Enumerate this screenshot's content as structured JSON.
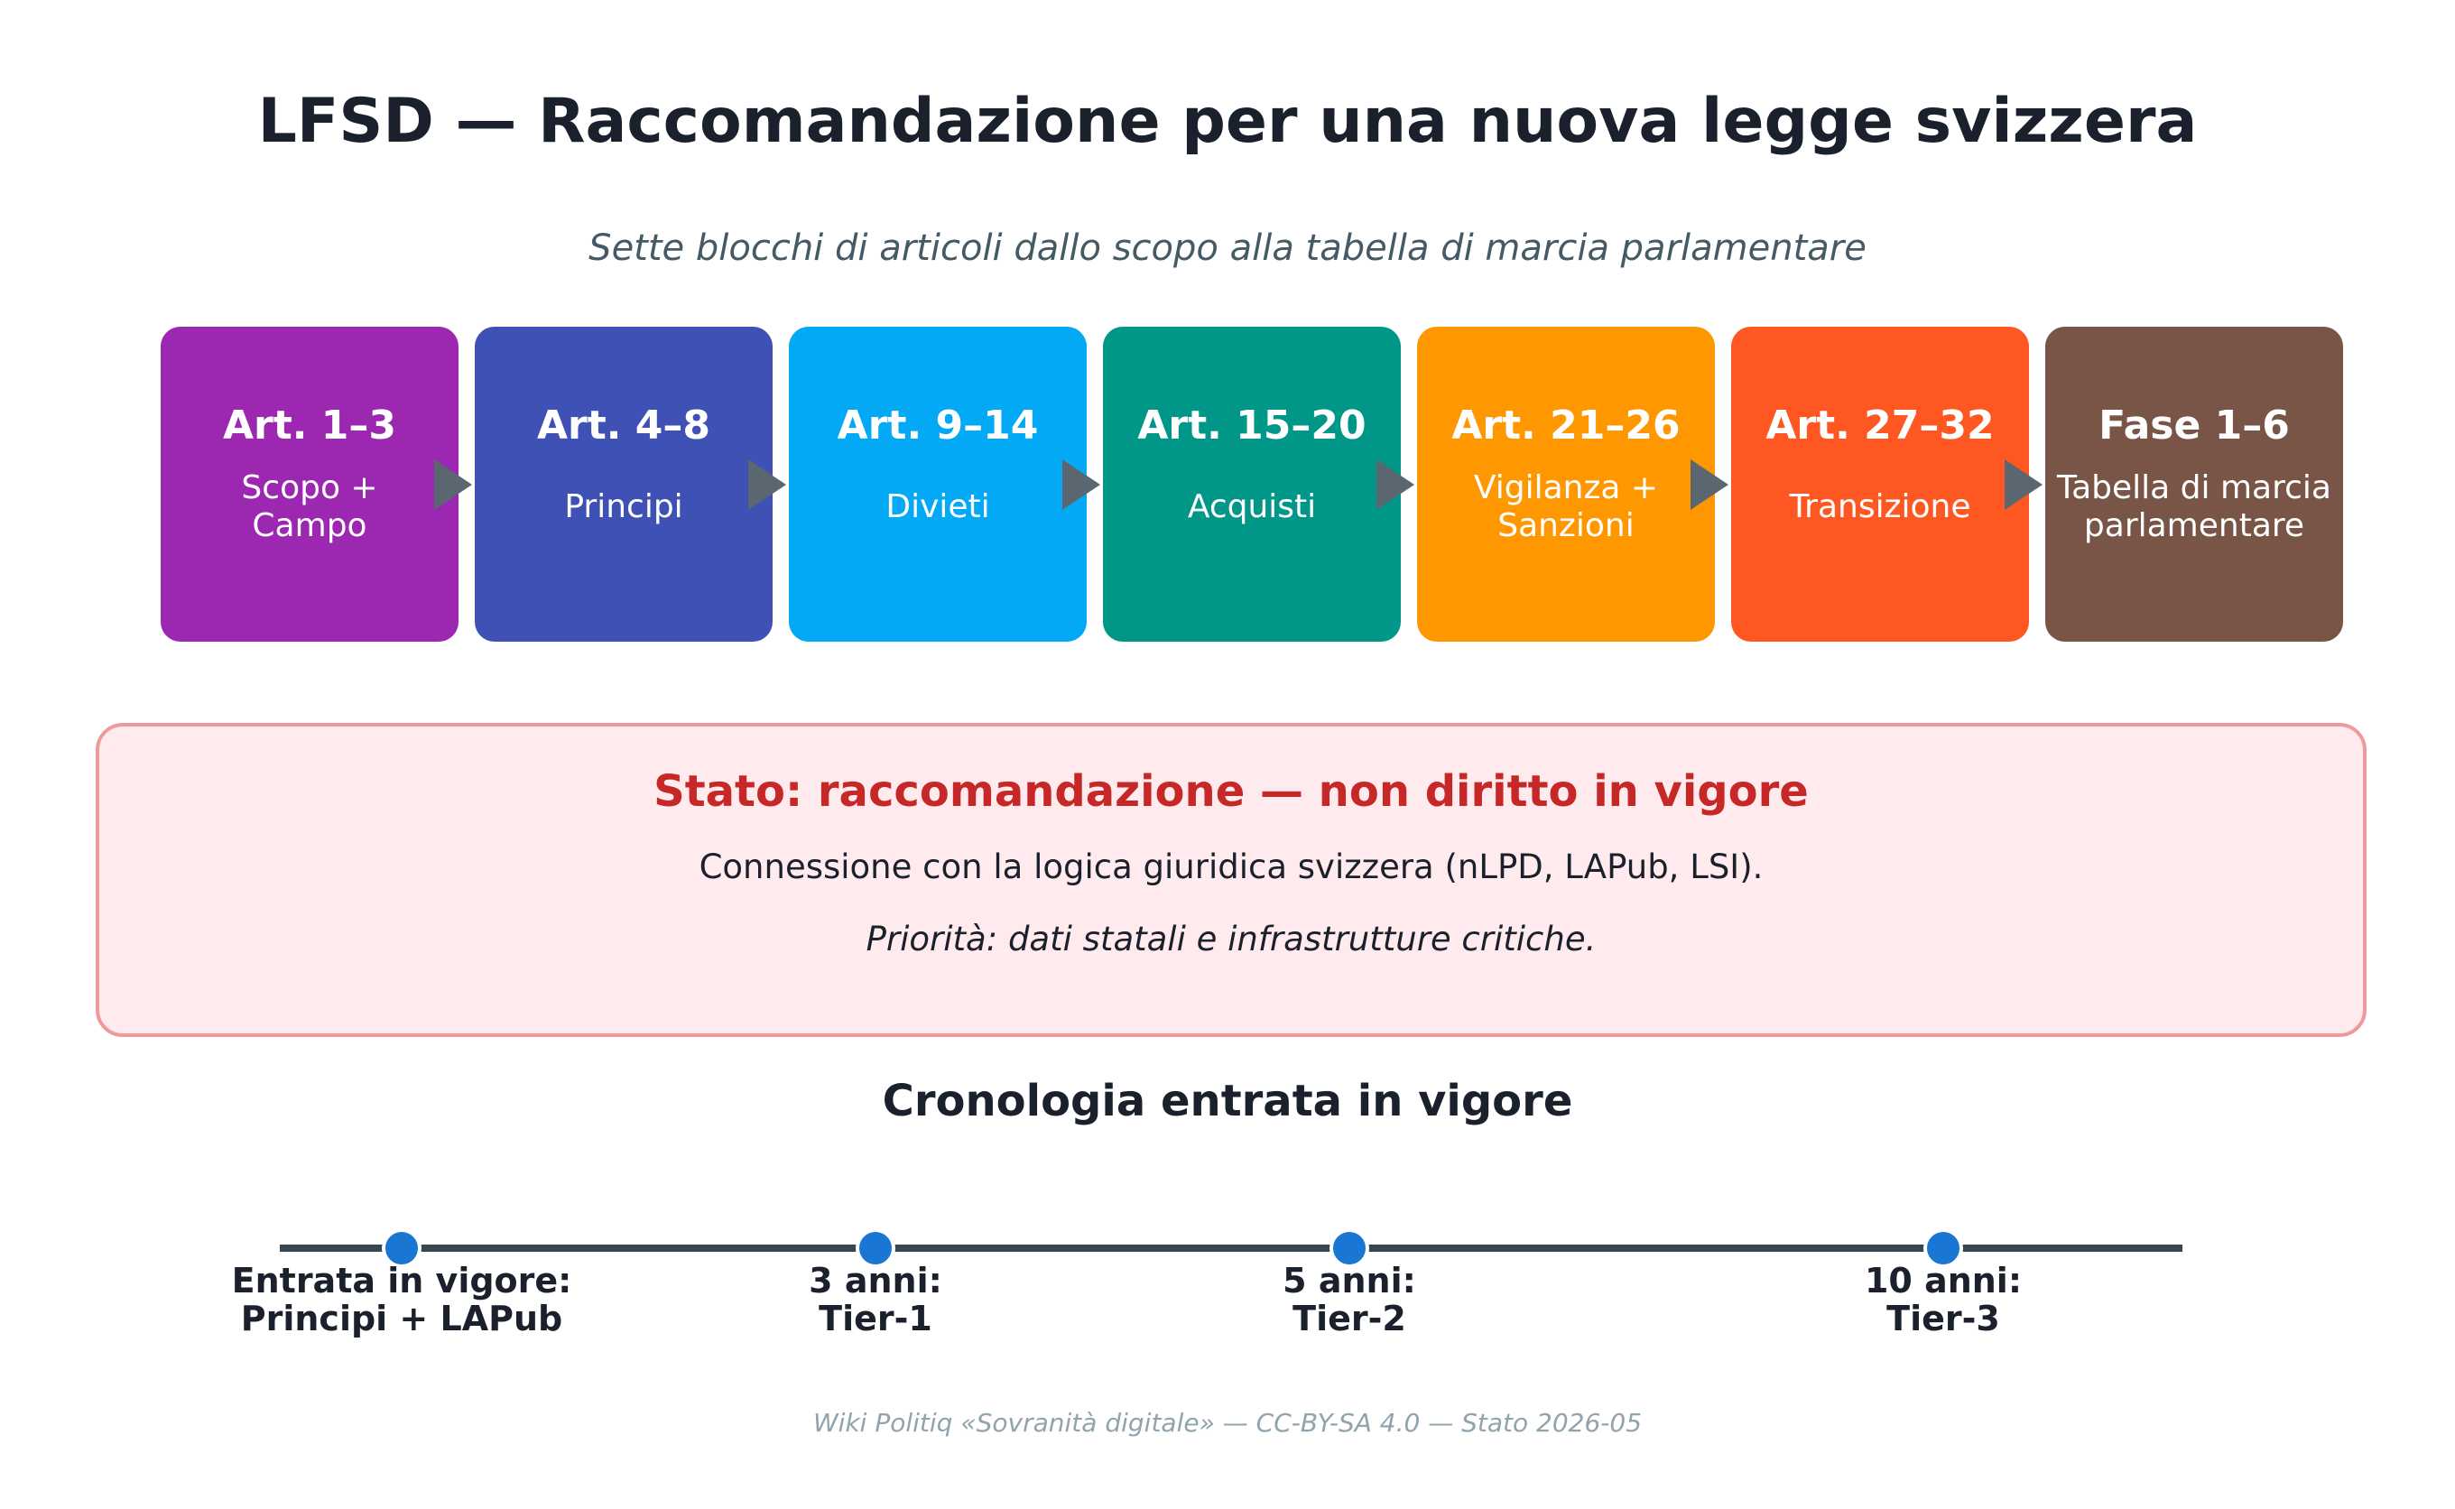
{
  "title": "LFSD — Raccomandazione per una nuova legge svizzera",
  "subtitle": "Sette blocchi di articoli dallo scopo alla tabella di marcia parlamentare",
  "blocks": [
    {
      "head": "Art. 1–3",
      "desc": "Scopo +\nCampo",
      "color": "#9c27b0"
    },
    {
      "head": "Art. 4–8",
      "desc": "Principi",
      "color": "#3f51b5"
    },
    {
      "head": "Art. 9–14",
      "desc": "Divieti",
      "color": "#03a9f4"
    },
    {
      "head": "Art. 15–20",
      "desc": "Acquisti",
      "color": "#009688"
    },
    {
      "head": "Art. 21–26",
      "desc": "Vigilanza +\nSanzioni",
      "color": "#ff9800"
    },
    {
      "head": "Art. 27–32",
      "desc": "Transizione",
      "color": "#ff5722"
    },
    {
      "head": "Fase 1–6",
      "desc": "Tabella di marcia\nparlamentare",
      "color": "#795548"
    }
  ],
  "arrow_icon": "arrow-right-icon",
  "status": {
    "title": "Stato: raccomandazione — non diritto in vigore",
    "line1": "Connessione con la logica giuridica svizzera (nLPD, LAPub, LSI).",
    "line2": "Priorità: dati statali e infrastrutture critiche."
  },
  "timeline": {
    "title": "Cronologia entrata in vigore",
    "milestones": [
      {
        "label": "Entrata in vigore:\nPrincipi + LAPub"
      },
      {
        "label": "3 anni:\nTier-1"
      },
      {
        "label": "5 anni:\nTier-2"
      },
      {
        "label": "10 anni:\nTier-3"
      }
    ]
  },
  "footer": "Wiki Politiq «Sovranità digitale» — CC-BY-SA 4.0 — Stato 2026-05"
}
